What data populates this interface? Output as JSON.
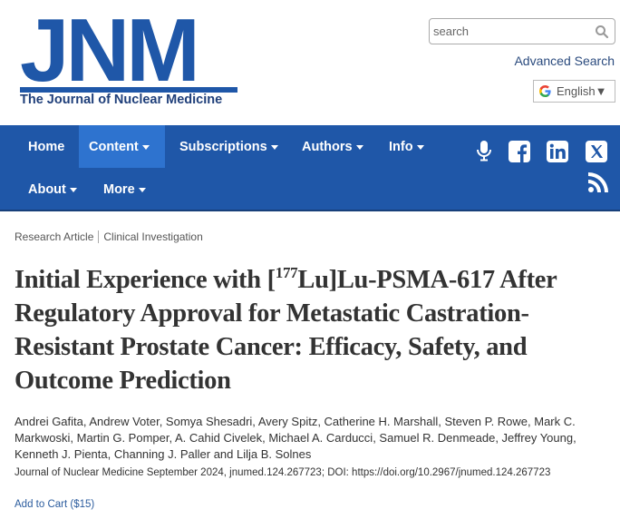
{
  "header": {
    "logo_text": "JNM",
    "logo_subtitle": "The Journal of Nuclear Medicine",
    "search_placeholder": "search",
    "advanced_search_label": "Advanced Search",
    "language_label": "English▼"
  },
  "nav": {
    "items": [
      {
        "label": "Home",
        "has_caret": false
      },
      {
        "label": "Content",
        "has_caret": true,
        "active": true
      },
      {
        "label": "Subscriptions",
        "has_caret": true
      },
      {
        "label": "Authors",
        "has_caret": true
      },
      {
        "label": "Info",
        "has_caret": true
      },
      {
        "label": "About",
        "has_caret": true
      },
      {
        "label": "More",
        "has_caret": true
      }
    ],
    "social_icons": [
      "microphone-icon",
      "facebook-icon",
      "linkedin-icon",
      "x-twitter-icon",
      "rss-icon"
    ],
    "colors": {
      "background": "#1f57a8",
      "active": "#2e73cf"
    }
  },
  "article": {
    "breadcrumb": [
      "Research Article",
      "Clinical Investigation"
    ],
    "title_prefix": "Initial Experience with [",
    "title_sup": "177",
    "title_suffix": "Lu]Lu-PSMA-617 After Regulatory Approval for Metastatic Castration-Resistant Prostate Cancer: Efficacy, Safety, and Outcome Prediction",
    "authors": "Andrei Gafita, Andrew Voter, Somya Shesadri, Avery Spitz, Catherine H. Marshall, Steven P. Rowe, Mark C. Markwoski, Martin G. Pomper, A. Cahid Civelek, Michael A. Carducci, Samuel R. Denmeade, Jeffrey Young, Kenneth J. Pienta, Channing J. Paller and Lilja B. Solnes",
    "citation": "Journal of Nuclear Medicine September 2024, jnumed.124.267723; DOI: https://doi.org/10.2967/jnumed.124.267723",
    "add_to_cart": "Add to Cart ($15)"
  }
}
